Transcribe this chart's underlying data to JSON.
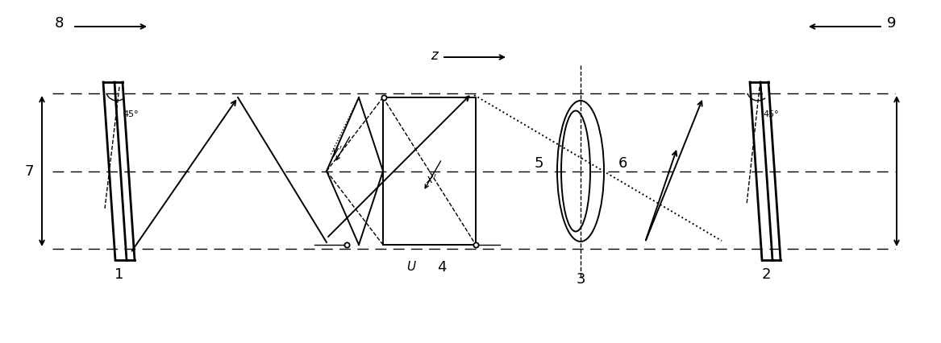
{
  "bg_color": "#ffffff",
  "line_color": "#000000",
  "fig_width": 11.67,
  "fig_height": 4.27,
  "dpi": 100,
  "xlim": [
    0,
    1167
  ],
  "ylim": [
    0,
    427
  ],
  "y_top": 310,
  "y_mid": 213,
  "y_bot": 117,
  "label_fontsize": 13,
  "small_fontsize": 10
}
